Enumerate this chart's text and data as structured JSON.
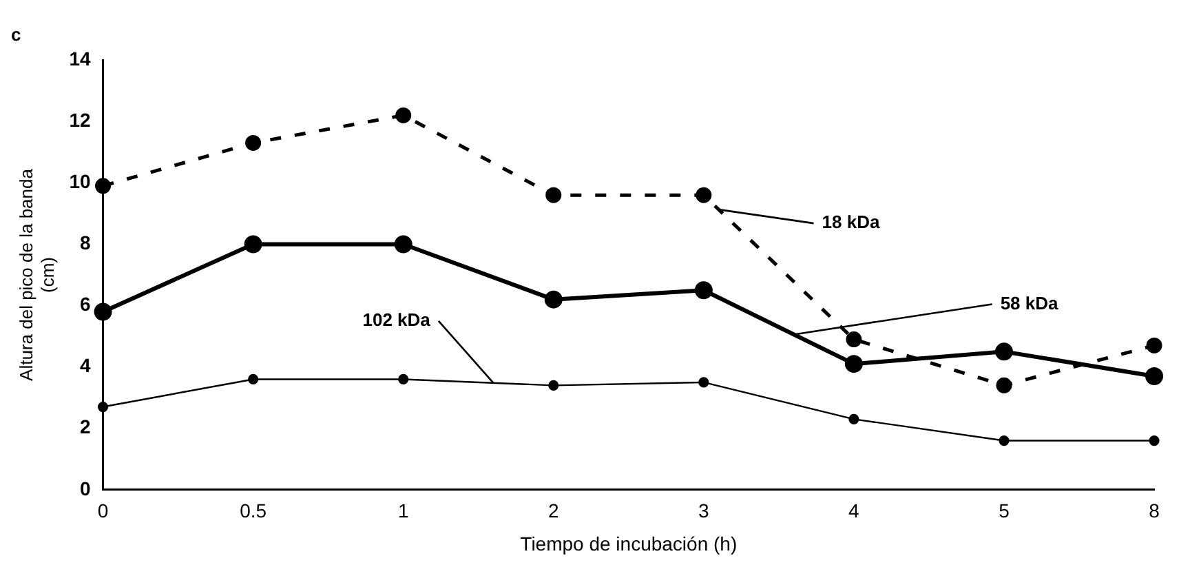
{
  "chart_data": {
    "type": "line",
    "title": "c",
    "xlabel": "Tiempo de incubación (h)",
    "ylabel": "Altura del pico de la banda\n(cm)",
    "categories": [
      "0",
      "0.5",
      "1",
      "2",
      "3",
      "4",
      "5",
      "8"
    ],
    "series": [
      {
        "name": "18 kDa",
        "color": "#000000",
        "line_style": "dashed",
        "values": [
          9.9,
          11.3,
          12.2,
          9.6,
          9.6,
          4.9,
          3.4,
          4.7
        ]
      },
      {
        "name": "58 kDa",
        "color": "#000000",
        "line_style": "solid",
        "values": [
          5.8,
          8.0,
          8.0,
          6.2,
          6.5,
          4.1,
          4.5,
          3.7
        ]
      },
      {
        "name": "102 kDa",
        "color": "#000000",
        "line_style": "solid",
        "values": [
          2.7,
          3.6,
          3.6,
          3.4,
          3.5,
          2.3,
          1.6,
          1.6
        ]
      }
    ],
    "ylim": [
      0,
      14
    ],
    "yticks": [
      0,
      2,
      4,
      6,
      8,
      10,
      12,
      14
    ],
    "marker": "circle",
    "grid": false,
    "legend": false
  }
}
